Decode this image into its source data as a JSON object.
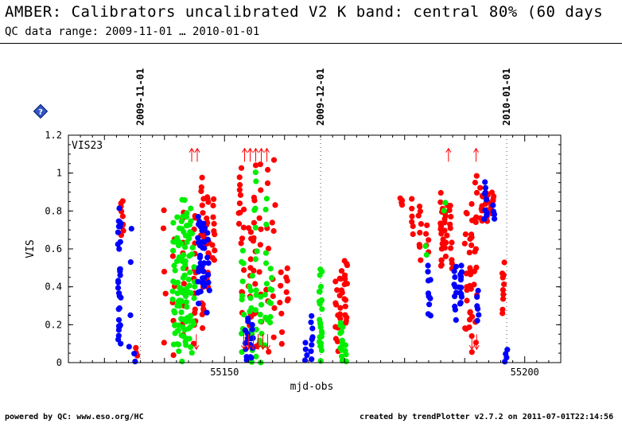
{
  "header": {
    "title": "AMBER: Calibrators uncalibrated V2 K band: central 80% (60 days",
    "subtitle": "QC data range: 2009-11-01 … 2010-01-01"
  },
  "footer": {
    "left": "powered by QC: www.eso.org/HC",
    "right": "created by trendPlotter v2.7.2 on 2011-07-01T22:14:56"
  },
  "help_icon": "?",
  "chart_data": {
    "type": "scatter",
    "title": "",
    "panel_label": "VIS23",
    "xlabel": "mjd-obs",
    "ylabel": "VIS",
    "xlim": [
      55124,
      55206
    ],
    "ylim": [
      0,
      1.2
    ],
    "x_ticks": [
      55150,
      55200
    ],
    "y_ticks": [
      0,
      0.2,
      0.4,
      0.6,
      0.8,
      1,
      1.2
    ],
    "grid": false,
    "date_markers": [
      {
        "x": 55136,
        "label": "2009-11-01"
      },
      {
        "x": 55166,
        "label": "2009-12-01"
      },
      {
        "x": 55197,
        "label": "2010-01-01"
      }
    ],
    "colors": {
      "red": "#ff0000",
      "green": "#00ee00",
      "blue": "#0000ff"
    },
    "series": [
      {
        "color": "red",
        "clusters": [
          {
            "x": 55132.9,
            "y_min": 0.65,
            "y_max": 0.88,
            "n": 9
          },
          {
            "x": 55135.3,
            "y_min": 0.03,
            "y_max": 0.08,
            "n": 3
          },
          {
            "x": 55140.0,
            "y_min": 0.07,
            "y_max": 0.91,
            "n": 5
          },
          {
            "x": 55141.5,
            "y_min": 0.0,
            "y_max": 0.7,
            "n": 6
          },
          {
            "x": 55143.3,
            "y_min": 0.06,
            "y_max": 0.88,
            "n": 10
          },
          {
            "x": 55145.0,
            "y_min": 0.05,
            "y_max": 0.85,
            "n": 14
          },
          {
            "x": 55146.3,
            "y_min": 0.12,
            "y_max": 1.02,
            "n": 22
          },
          {
            "x": 55147.2,
            "y_min": 0.37,
            "y_max": 0.93,
            "n": 16
          },
          {
            "x": 55148.1,
            "y_min": 0.5,
            "y_max": 0.88,
            "n": 10
          },
          {
            "x": 55152.6,
            "y_min": 0.72,
            "y_max": 1.03,
            "n": 9
          },
          {
            "x": 55153.0,
            "y_min": 0.2,
            "y_max": 0.88,
            "n": 8
          },
          {
            "x": 55154.2,
            "y_min": 0.05,
            "y_max": 0.8,
            "n": 12
          },
          {
            "x": 55155.0,
            "y_min": 0.05,
            "y_max": 1.1,
            "n": 12
          },
          {
            "x": 55156.0,
            "y_min": 0.07,
            "y_max": 1.08,
            "n": 9
          },
          {
            "x": 55157.1,
            "y_min": 0.05,
            "y_max": 1.1,
            "n": 7
          },
          {
            "x": 55158.2,
            "y_min": 0.05,
            "y_max": 1.1,
            "n": 8
          },
          {
            "x": 55159.4,
            "y_min": 0.03,
            "y_max": 0.5,
            "n": 6
          },
          {
            "x": 55160.5,
            "y_min": 0.3,
            "y_max": 0.5,
            "n": 6
          },
          {
            "x": 55168.7,
            "y_min": 0.02,
            "y_max": 0.45,
            "n": 10
          },
          {
            "x": 55169.4,
            "y_min": 0.22,
            "y_max": 0.52,
            "n": 9
          },
          {
            "x": 55170.2,
            "y_min": 0.17,
            "y_max": 0.58,
            "n": 14
          },
          {
            "x": 55179.5,
            "y_min": 0.83,
            "y_max": 0.87,
            "n": 4
          },
          {
            "x": 55181.2,
            "y_min": 0.66,
            "y_max": 0.87,
            "n": 6
          },
          {
            "x": 55182.5,
            "y_min": 0.52,
            "y_max": 0.86,
            "n": 8
          },
          {
            "x": 55183.8,
            "y_min": 0.58,
            "y_max": 0.73,
            "n": 5
          },
          {
            "x": 55186.2,
            "y_min": 0.45,
            "y_max": 0.9,
            "n": 16
          },
          {
            "x": 55186.9,
            "y_min": 0.56,
            "y_max": 0.86,
            "n": 10
          },
          {
            "x": 55187.7,
            "y_min": 0.46,
            "y_max": 0.87,
            "n": 10
          },
          {
            "x": 55190.2,
            "y_min": 0.08,
            "y_max": 0.88,
            "n": 10
          },
          {
            "x": 55191.0,
            "y_min": 0.02,
            "y_max": 0.85,
            "n": 20
          },
          {
            "x": 55191.8,
            "y_min": 0.08,
            "y_max": 1.07,
            "n": 14
          },
          {
            "x": 55192.8,
            "y_min": 0.72,
            "y_max": 0.93,
            "n": 8
          },
          {
            "x": 55193.7,
            "y_min": 0.74,
            "y_max": 0.9,
            "n": 10
          },
          {
            "x": 55194.6,
            "y_min": 0.78,
            "y_max": 0.9,
            "n": 8
          },
          {
            "x": 55196.5,
            "y_min": 0.25,
            "y_max": 0.53,
            "n": 10
          }
        ]
      },
      {
        "color": "green",
        "clusters": [
          {
            "x": 55141.6,
            "y_min": 0.0,
            "y_max": 0.8,
            "n": 16
          },
          {
            "x": 55142.3,
            "y_min": 0.0,
            "y_max": 0.8,
            "n": 22
          },
          {
            "x": 55143.0,
            "y_min": 0.0,
            "y_max": 0.88,
            "n": 24
          },
          {
            "x": 55143.6,
            "y_min": 0.0,
            "y_max": 0.9,
            "n": 22
          },
          {
            "x": 55144.2,
            "y_min": 0.0,
            "y_max": 0.92,
            "n": 18
          },
          {
            "x": 55144.8,
            "y_min": 0.05,
            "y_max": 0.72,
            "n": 10
          },
          {
            "x": 55153.0,
            "y_min": 0.0,
            "y_max": 0.65,
            "n": 10
          },
          {
            "x": 55154.4,
            "y_min": 0.0,
            "y_max": 0.52,
            "n": 10
          },
          {
            "x": 55155.2,
            "y_min": 0.0,
            "y_max": 1.12,
            "n": 12
          },
          {
            "x": 55156.0,
            "y_min": 0.0,
            "y_max": 0.37,
            "n": 8
          },
          {
            "x": 55156.9,
            "y_min": 0.03,
            "y_max": 0.92,
            "n": 10
          },
          {
            "x": 55157.7,
            "y_min": 0.2,
            "y_max": 0.5,
            "n": 8
          },
          {
            "x": 55166.0,
            "y_min": 0.0,
            "y_max": 0.5,
            "n": 26
          },
          {
            "x": 55169.5,
            "y_min": 0.0,
            "y_max": 0.23,
            "n": 12
          },
          {
            "x": 55170.2,
            "y_min": 0.0,
            "y_max": 0.1,
            "n": 4
          },
          {
            "x": 55183.5,
            "y_min": 0.56,
            "y_max": 0.62,
            "n": 2
          },
          {
            "x": 55186.6,
            "y_min": 0.8,
            "y_max": 0.85,
            "n": 2
          }
        ]
      },
      {
        "color": "blue",
        "clusters": [
          {
            "x": 55132.5,
            "y_min": 0.0,
            "y_max": 0.88,
            "n": 30
          },
          {
            "x": 55134.3,
            "y_min": 0.0,
            "y_max": 0.82,
            "n": 4
          },
          {
            "x": 55135.2,
            "y_min": 0.0,
            "y_max": 0.05,
            "n": 2
          },
          {
            "x": 55145.8,
            "y_min": 0.27,
            "y_max": 0.81,
            "n": 18
          },
          {
            "x": 55146.5,
            "y_min": 0.34,
            "y_max": 0.8,
            "n": 16
          },
          {
            "x": 55147.3,
            "y_min": 0.25,
            "y_max": 0.75,
            "n": 8
          },
          {
            "x": 55153.7,
            "y_min": 0.0,
            "y_max": 0.25,
            "n": 10
          },
          {
            "x": 55154.5,
            "y_min": 0.0,
            "y_max": 0.2,
            "n": 8
          },
          {
            "x": 55163.5,
            "y_min": 0.0,
            "y_max": 0.12,
            "n": 4
          },
          {
            "x": 55164.6,
            "y_min": 0.0,
            "y_max": 0.27,
            "n": 8
          },
          {
            "x": 55184.1,
            "y_min": 0.22,
            "y_max": 0.52,
            "n": 10
          },
          {
            "x": 55188.5,
            "y_min": 0.22,
            "y_max": 0.52,
            "n": 10
          },
          {
            "x": 55189.3,
            "y_min": 0.28,
            "y_max": 0.52,
            "n": 12
          },
          {
            "x": 55192.2,
            "y_min": 0.2,
            "y_max": 0.38,
            "n": 6
          },
          {
            "x": 55193.5,
            "y_min": 0.73,
            "y_max": 0.98,
            "n": 10
          },
          {
            "x": 55194.8,
            "y_min": 0.75,
            "y_max": 0.83,
            "n": 4
          },
          {
            "x": 55196.9,
            "y_min": 0.0,
            "y_max": 0.07,
            "n": 4
          }
        ]
      }
    ],
    "upper_limit_arrows": [
      {
        "x": 55145.0,
        "color": "red",
        "n": 2
      },
      {
        "x": 55155.2,
        "color": "red",
        "n": 5
      },
      {
        "x": 55187.3,
        "color": "red",
        "n": 1
      },
      {
        "x": 55191.9,
        "color": "red",
        "n": 1
      }
    ],
    "lower_limit_arrows": [
      {
        "x": 55145.3,
        "color": "red",
        "n": 1
      },
      {
        "x": 55155.2,
        "color": "red",
        "n": 6
      },
      {
        "x": 55191.6,
        "color": "red",
        "n": 2
      }
    ]
  }
}
